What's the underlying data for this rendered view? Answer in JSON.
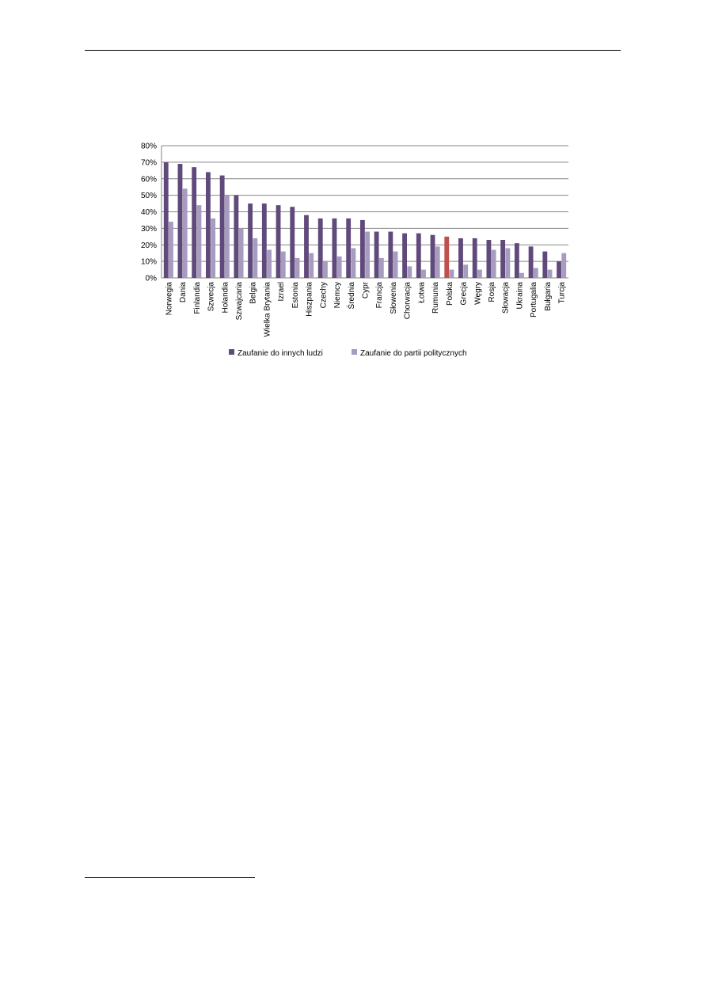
{
  "chart_data": {
    "type": "bar",
    "ylim": [
      0,
      80
    ],
    "yticks": [
      "0%",
      "10%",
      "20%",
      "30%",
      "40%",
      "50%",
      "60%",
      "70%",
      "80%"
    ],
    "grid": true,
    "legend_position": "bottom",
    "categories": [
      "Norwegia",
      "Dania",
      "Finlandia",
      "Szwecja",
      "Holandia",
      "Szwajcaria",
      "Belgia",
      "Wielka Brytania",
      "Izrael",
      "Estonia",
      "Hiszpania",
      "Czechy",
      "Niemcy",
      "Średnia",
      "Cypr",
      "Francja",
      "Słowenia",
      "Chorwacja",
      "Łotwa",
      "Rumunia",
      "Polska",
      "Grecja",
      "Węgry",
      "Rosja",
      "Słowacja",
      "Ukraina",
      "Portugalia",
      "Bułgaria",
      "Turcja"
    ],
    "highlight_category": "Polska",
    "highlight_color": "#c0504d",
    "series": [
      {
        "name": "Zaufanie do innych ludzi",
        "color": "#604a7b",
        "values": [
          70,
          69,
          67,
          64,
          62,
          50,
          45,
          45,
          44,
          43,
          38,
          36,
          36,
          36,
          35,
          28,
          28,
          27,
          27,
          26,
          25,
          24,
          24,
          23,
          23,
          21,
          19,
          16,
          10
        ]
      },
      {
        "name": "Zaufanie do partii politycznych",
        "color": "#a89bc0",
        "values": [
          34,
          54,
          44,
          36,
          50,
          30,
          24,
          17,
          16,
          12,
          15,
          10,
          13,
          18,
          28,
          12,
          16,
          7,
          5,
          19,
          5,
          8,
          5,
          17,
          18,
          3,
          6,
          5,
          15
        ]
      }
    ]
  }
}
